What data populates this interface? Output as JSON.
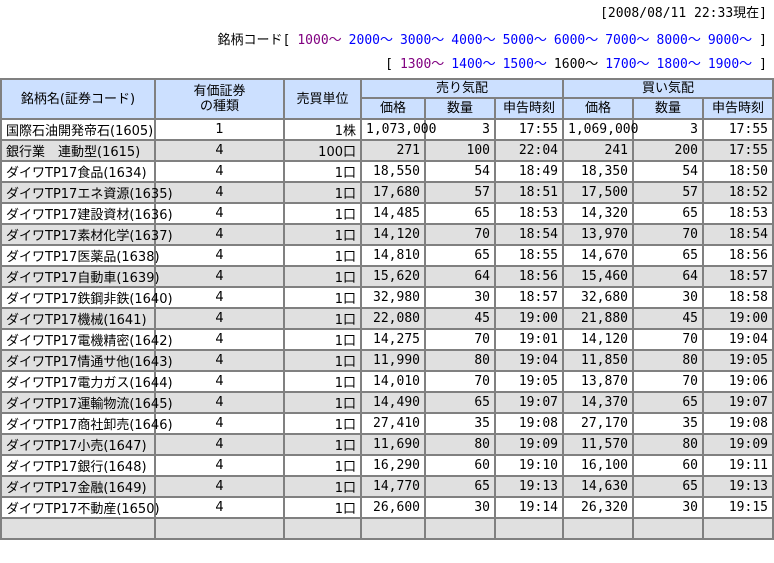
{
  "page": {
    "updated_at": "[2008/08/11 22:33現在]"
  },
  "code_nav": {
    "label": "銘柄コード",
    "open_bracket": "[",
    "close_bracket": "]",
    "line1": [
      {
        "label": "1000～",
        "state": "visited"
      },
      {
        "label": "2000～",
        "state": "link"
      },
      {
        "label": "3000～",
        "state": "link"
      },
      {
        "label": "4000～",
        "state": "link"
      },
      {
        "label": "5000～",
        "state": "link"
      },
      {
        "label": "6000～",
        "state": "link"
      },
      {
        "label": "7000～",
        "state": "link"
      },
      {
        "label": "8000～",
        "state": "link"
      },
      {
        "label": "9000～",
        "state": "link"
      }
    ],
    "line2": [
      {
        "label": "1300～",
        "state": "visited"
      },
      {
        "label": "1400～",
        "state": "link"
      },
      {
        "label": "1500～",
        "state": "link"
      },
      {
        "label": "1600～",
        "state": "current"
      },
      {
        "label": "1700～",
        "state": "link"
      },
      {
        "label": "1800～",
        "state": "link"
      },
      {
        "label": "1900～",
        "state": "link"
      }
    ]
  },
  "table": {
    "headers": {
      "name": "銘柄名(証券コード)",
      "security_type_line1": "有価証券",
      "security_type_line2": "の種類",
      "trading_unit": "売買単位",
      "sell_group": "売り気配",
      "buy_group": "買い気配",
      "price": "価格",
      "quantity": "数量",
      "time": "申告時刻"
    },
    "rows": [
      {
        "name": "国際石油開発帝石(1605)",
        "type": "1",
        "unit": "1株",
        "sell_price": "1,073,000",
        "sell_qty": "3",
        "sell_time": "17:55",
        "buy_price": "1,069,000",
        "buy_qty": "3",
        "buy_time": "17:55"
      },
      {
        "name": "銀行業　連動型(1615)",
        "type": "4",
        "unit": "100口",
        "sell_price": "271",
        "sell_qty": "100",
        "sell_time": "22:04",
        "buy_price": "241",
        "buy_qty": "200",
        "buy_time": "17:55"
      },
      {
        "name": "ダイワTP17食品(1634)",
        "type": "4",
        "unit": "1口",
        "sell_price": "18,550",
        "sell_qty": "54",
        "sell_time": "18:49",
        "buy_price": "18,350",
        "buy_qty": "54",
        "buy_time": "18:50"
      },
      {
        "name": "ダイワTP17エネ資源(1635)",
        "type": "4",
        "unit": "1口",
        "sell_price": "17,680",
        "sell_qty": "57",
        "sell_time": "18:51",
        "buy_price": "17,500",
        "buy_qty": "57",
        "buy_time": "18:52"
      },
      {
        "name": "ダイワTP17建設資材(1636)",
        "type": "4",
        "unit": "1口",
        "sell_price": "14,485",
        "sell_qty": "65",
        "sell_time": "18:53",
        "buy_price": "14,320",
        "buy_qty": "65",
        "buy_time": "18:53"
      },
      {
        "name": "ダイワTP17素材化学(1637)",
        "type": "4",
        "unit": "1口",
        "sell_price": "14,120",
        "sell_qty": "70",
        "sell_time": "18:54",
        "buy_price": "13,970",
        "buy_qty": "70",
        "buy_time": "18:54"
      },
      {
        "name": "ダイワTP17医薬品(1638)",
        "type": "4",
        "unit": "1口",
        "sell_price": "14,810",
        "sell_qty": "65",
        "sell_time": "18:55",
        "buy_price": "14,670",
        "buy_qty": "65",
        "buy_time": "18:56"
      },
      {
        "name": "ダイワTP17自動車(1639)",
        "type": "4",
        "unit": "1口",
        "sell_price": "15,620",
        "sell_qty": "64",
        "sell_time": "18:56",
        "buy_price": "15,460",
        "buy_qty": "64",
        "buy_time": "18:57"
      },
      {
        "name": "ダイワTP17鉄鋼非鉄(1640)",
        "type": "4",
        "unit": "1口",
        "sell_price": "32,980",
        "sell_qty": "30",
        "sell_time": "18:57",
        "buy_price": "32,680",
        "buy_qty": "30",
        "buy_time": "18:58"
      },
      {
        "name": "ダイワTP17機械(1641)",
        "type": "4",
        "unit": "1口",
        "sell_price": "22,080",
        "sell_qty": "45",
        "sell_time": "19:00",
        "buy_price": "21,880",
        "buy_qty": "45",
        "buy_time": "19:00"
      },
      {
        "name": "ダイワTP17電機精密(1642)",
        "type": "4",
        "unit": "1口",
        "sell_price": "14,275",
        "sell_qty": "70",
        "sell_time": "19:01",
        "buy_price": "14,120",
        "buy_qty": "70",
        "buy_time": "19:04"
      },
      {
        "name": "ダイワTP17情通サ他(1643)",
        "type": "4",
        "unit": "1口",
        "sell_price": "11,990",
        "sell_qty": "80",
        "sell_time": "19:04",
        "buy_price": "11,850",
        "buy_qty": "80",
        "buy_time": "19:05"
      },
      {
        "name": "ダイワTP17電力ガス(1644)",
        "type": "4",
        "unit": "1口",
        "sell_price": "14,010",
        "sell_qty": "70",
        "sell_time": "19:05",
        "buy_price": "13,870",
        "buy_qty": "70",
        "buy_time": "19:06"
      },
      {
        "name": "ダイワTP17運輸物流(1645)",
        "type": "4",
        "unit": "1口",
        "sell_price": "14,490",
        "sell_qty": "65",
        "sell_time": "19:07",
        "buy_price": "14,370",
        "buy_qty": "65",
        "buy_time": "19:07"
      },
      {
        "name": "ダイワTP17商社卸売(1646)",
        "type": "4",
        "unit": "1口",
        "sell_price": "27,410",
        "sell_qty": "35",
        "sell_time": "19:08",
        "buy_price": "27,170",
        "buy_qty": "35",
        "buy_time": "19:08"
      },
      {
        "name": "ダイワTP17小売(1647)",
        "type": "4",
        "unit": "1口",
        "sell_price": "11,690",
        "sell_qty": "80",
        "sell_time": "19:09",
        "buy_price": "11,570",
        "buy_qty": "80",
        "buy_time": "19:09"
      },
      {
        "name": "ダイワTP17銀行(1648)",
        "type": "4",
        "unit": "1口",
        "sell_price": "16,290",
        "sell_qty": "60",
        "sell_time": "19:10",
        "buy_price": "16,100",
        "buy_qty": "60",
        "buy_time": "19:11"
      },
      {
        "name": "ダイワTP17金融(1649)",
        "type": "4",
        "unit": "1口",
        "sell_price": "14,770",
        "sell_qty": "65",
        "sell_time": "19:13",
        "buy_price": "14,630",
        "buy_qty": "65",
        "buy_time": "19:13"
      },
      {
        "name": "ダイワTP17不動産(1650)",
        "type": "4",
        "unit": "1口",
        "sell_price": "26,600",
        "sell_qty": "30",
        "sell_time": "19:14",
        "buy_price": "26,320",
        "buy_qty": "30",
        "buy_time": "19:15"
      }
    ]
  },
  "colors": {
    "header_bg": "#cce0ff",
    "row_stripe_bg": "#e0e0e0",
    "border": "#808080",
    "link": "#0000ff",
    "link_visited": "#800080",
    "text": "#000000"
  }
}
